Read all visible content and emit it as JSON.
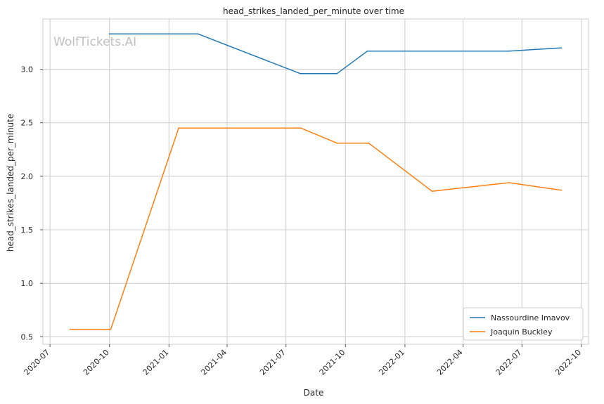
{
  "chart_data": {
    "type": "line",
    "title": "head_strikes_landed_per_minute over time",
    "xlabel": "Date",
    "ylabel": "head_strikes_landed_per_minute",
    "watermark": "WolfTickets.AI",
    "x_ticks": [
      "2020-07",
      "2020-10",
      "2021-01",
      "2021-04",
      "2021-07",
      "2021-10",
      "2022-01",
      "2022-04",
      "2022-07",
      "2022-10"
    ],
    "y_ticks": [
      "0.5",
      "1.0",
      "1.5",
      "2.0",
      "2.5",
      "3.0"
    ],
    "xlim": [
      "2020-06-20",
      "2022-10-12"
    ],
    "ylim": [
      0.43,
      3.47
    ],
    "grid": true,
    "legend_position": "lower-right",
    "series": [
      {
        "name": "Nassourdine Imavov",
        "color": "#1f77b4",
        "points": [
          {
            "x": "2020-10-01",
            "y": 3.33
          },
          {
            "x": "2021-02-15",
            "y": 3.33
          },
          {
            "x": "2021-07-23",
            "y": 2.96
          },
          {
            "x": "2021-09-18",
            "y": 2.96
          },
          {
            "x": "2021-11-04",
            "y": 3.17
          },
          {
            "x": "2022-06-11",
            "y": 3.17
          },
          {
            "x": "2022-08-31",
            "y": 3.2
          }
        ]
      },
      {
        "name": "Joaquin Buckley",
        "color": "#ff7f0e",
        "points": [
          {
            "x": "2020-08-01",
            "y": 0.57
          },
          {
            "x": "2020-10-03",
            "y": 0.57
          },
          {
            "x": "2021-01-16",
            "y": 2.45
          },
          {
            "x": "2021-07-24",
            "y": 2.45
          },
          {
            "x": "2021-09-18",
            "y": 2.31
          },
          {
            "x": "2021-11-06",
            "y": 2.31
          },
          {
            "x": "2022-02-12",
            "y": 1.86
          },
          {
            "x": "2022-06-11",
            "y": 1.94
          },
          {
            "x": "2022-08-31",
            "y": 1.87
          }
        ]
      }
    ]
  }
}
